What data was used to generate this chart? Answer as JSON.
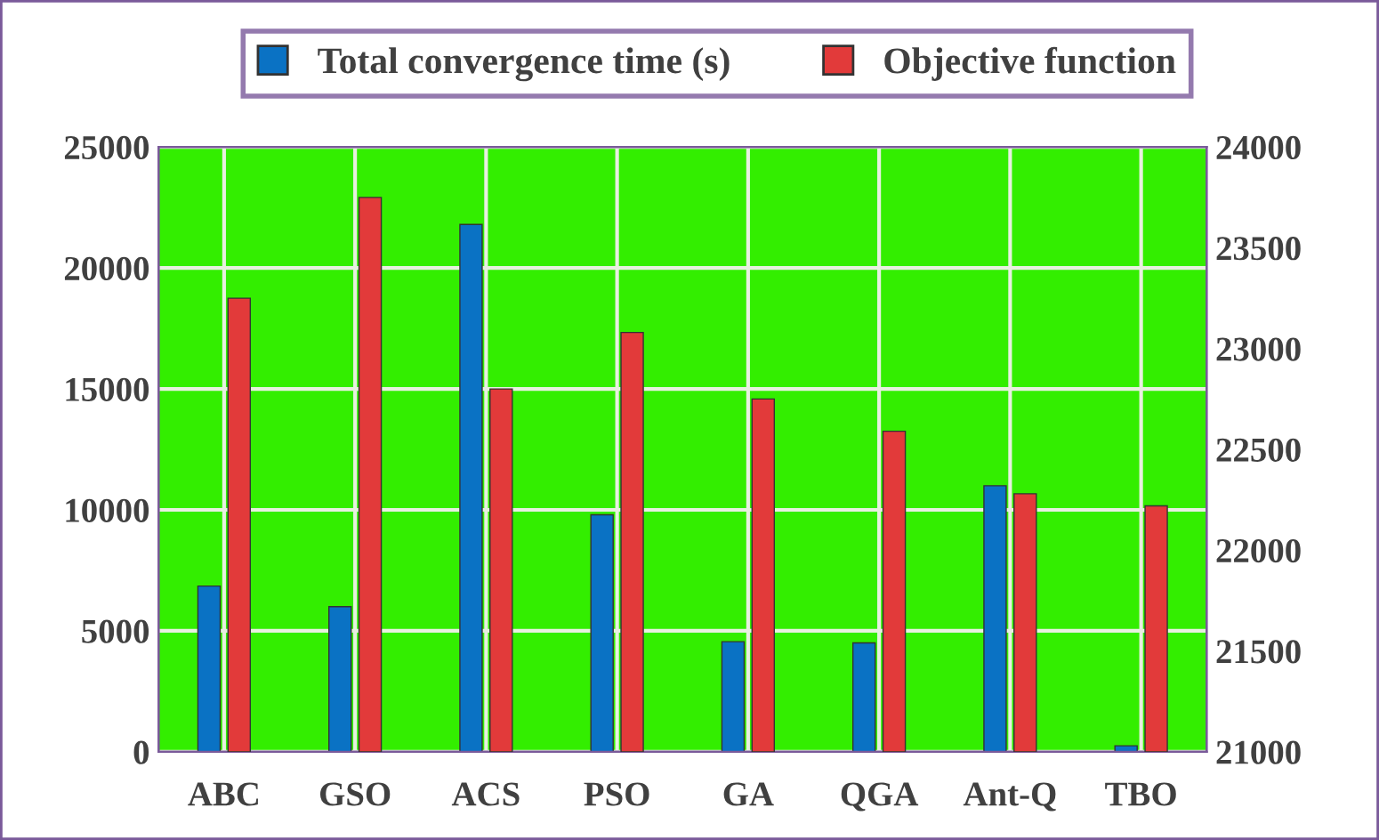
{
  "chart_data": {
    "type": "bar",
    "categories": [
      "ABC",
      "GSO",
      "ACS",
      "PSO",
      "GA",
      "QGA",
      "Ant-Q",
      "TBO"
    ],
    "series": [
      {
        "name": "Total convergence time (s)",
        "color": "#0a72c4",
        "values": [
          6850,
          6000,
          21800,
          9800,
          4550,
          4500,
          11000,
          250
        ]
      },
      {
        "name": "Objective function",
        "color": "#e23a3a",
        "axis": "y2",
        "values": [
          23250,
          23750,
          22800,
          23080,
          22750,
          22590,
          22280,
          22220
        ]
      }
    ],
    "ylim": [
      0,
      25000
    ],
    "yticks": [
      0,
      5000,
      10000,
      15000,
      20000,
      25000
    ],
    "y2lim": [
      21000,
      24000
    ],
    "y2ticks": [
      21000,
      21500,
      22000,
      22500,
      23000,
      23500,
      24000
    ],
    "grid": true,
    "legend": "top"
  }
}
